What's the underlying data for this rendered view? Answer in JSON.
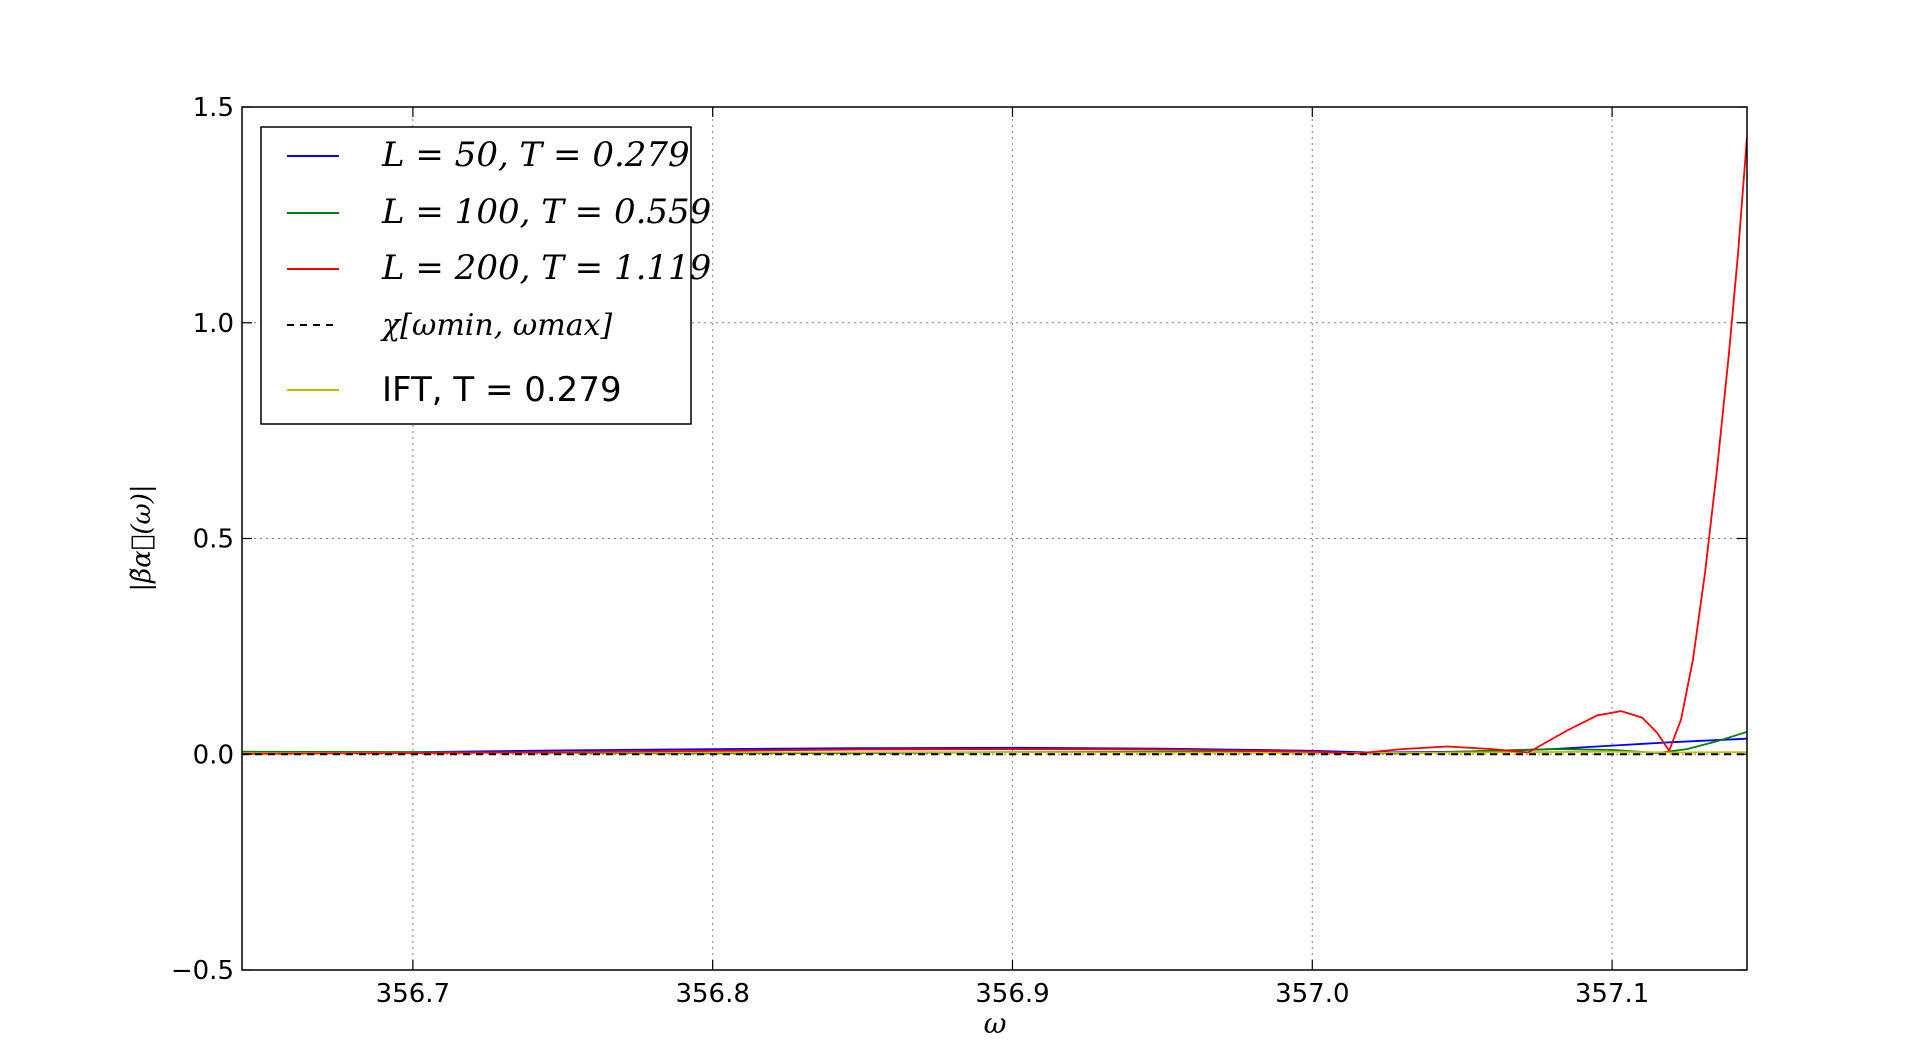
{
  "chart_data": {
    "type": "line",
    "xlabel": "ω",
    "ylabel": "|β̃α⃗(ω)|",
    "xlim": [
      356.643,
      357.145
    ],
    "ylim": [
      -0.5,
      1.5
    ],
    "xticks": [
      356.7,
      356.8,
      356.9,
      357.0,
      357.1
    ],
    "xtick_labels": [
      "356.7",
      "356.8",
      "356.9",
      "357.0",
      "357.1"
    ],
    "yticks": [
      -0.5,
      0.0,
      0.5,
      1.0,
      1.5
    ],
    "ytick_labels": [
      "−0.5",
      "0.0",
      "0.5",
      "1.0",
      "1.5"
    ],
    "grid": true,
    "legend_position": "top-left",
    "series": [
      {
        "name": "L = 50, T = 0.279",
        "color": "#0000ff",
        "style": "solid",
        "x": [
          356.643,
          356.7,
          356.75,
          356.8,
          356.85,
          356.9,
          356.95,
          357.0,
          357.02,
          357.05,
          357.08,
          357.1,
          357.12,
          357.145
        ],
        "y": [
          0.002,
          0.005,
          0.009,
          0.012,
          0.014,
          0.015,
          0.013,
          0.008,
          0.004,
          0.006,
          0.012,
          0.02,
          0.028,
          0.036
        ]
      },
      {
        "name": "L = 100, T = 0.559",
        "color": "#008000",
        "style": "solid",
        "x": [
          356.643,
          356.7,
          356.75,
          356.8,
          356.85,
          356.9,
          356.95,
          357.0,
          357.03,
          357.06,
          357.08,
          357.1,
          357.115,
          357.125,
          357.135,
          357.145
        ],
        "y": [
          0.006,
          0.005,
          0.003,
          0.002,
          0.003,
          0.005,
          0.006,
          0.004,
          0.002,
          0.008,
          0.012,
          0.01,
          0.003,
          0.012,
          0.03,
          0.052
        ]
      },
      {
        "name": "L = 200, T = 1.119",
        "color": "#ff0000",
        "style": "solid",
        "x": [
          356.643,
          356.7,
          356.75,
          356.8,
          356.85,
          356.9,
          356.95,
          357.0,
          357.015,
          357.03,
          357.045,
          357.06,
          357.072,
          357.085,
          357.095,
          357.103,
          357.11,
          357.115,
          357.119,
          357.123,
          357.127,
          357.131,
          357.135,
          357.139,
          357.142,
          357.145
        ],
        "y": [
          0.001,
          0.003,
          0.005,
          0.008,
          0.011,
          0.012,
          0.011,
          0.006,
          0.002,
          0.012,
          0.018,
          0.012,
          0.004,
          0.055,
          0.09,
          0.1,
          0.085,
          0.05,
          0.008,
          0.08,
          0.22,
          0.42,
          0.66,
          0.93,
          1.16,
          1.43
        ]
      },
      {
        "name": "χ[ωmin, ωmax]",
        "color": "#000000",
        "style": "dashed",
        "x": [
          356.643,
          357.145
        ],
        "y": [
          0.0,
          0.0
        ]
      },
      {
        "name": "IFT, T = 0.279",
        "color": "#bfbf00",
        "style": "solid",
        "x": [
          356.643,
          356.8,
          356.9,
          357.0,
          357.05,
          357.1,
          357.12,
          357.145
        ],
        "y": [
          0.003,
          0.004,
          0.005,
          0.003,
          0.004,
          0.006,
          0.004,
          0.005
        ]
      }
    ]
  }
}
